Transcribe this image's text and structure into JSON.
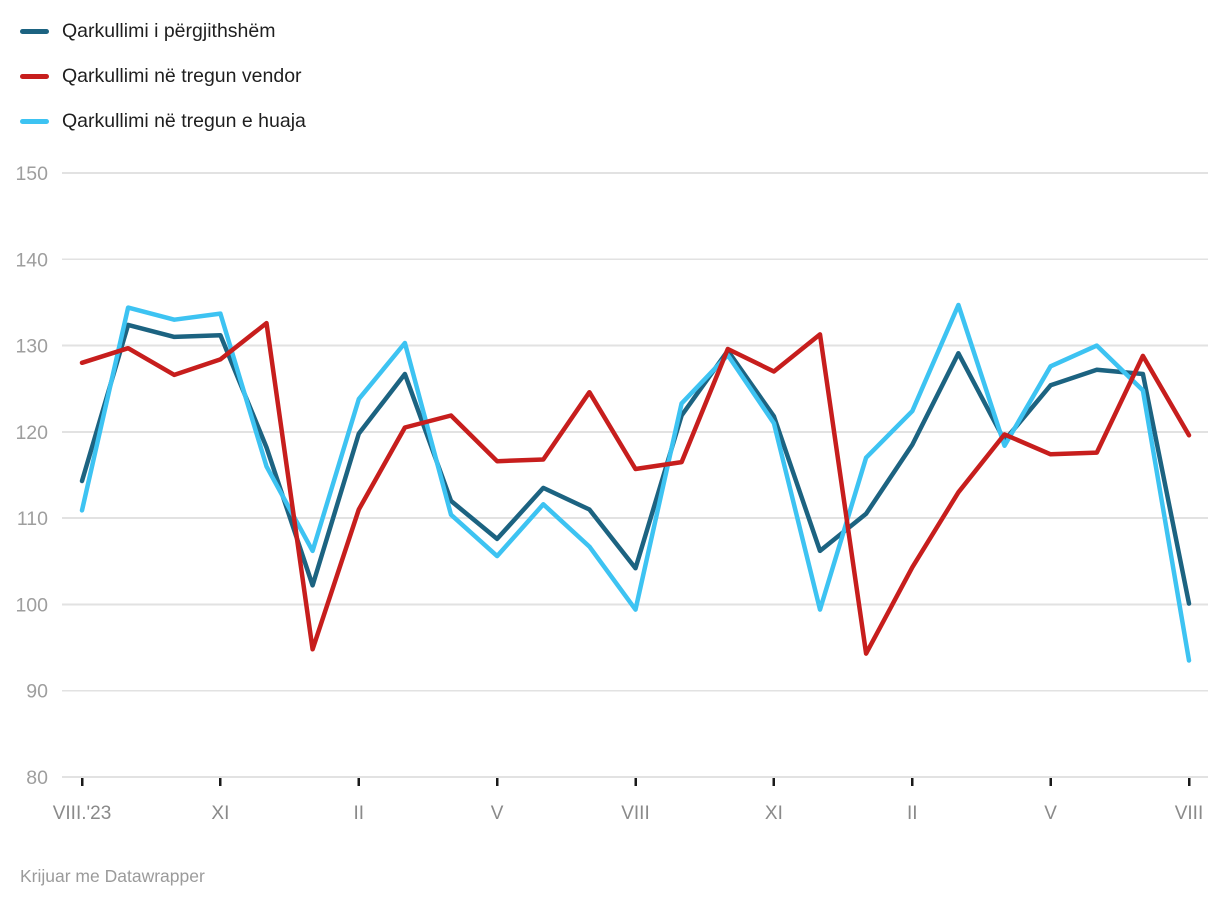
{
  "footer": {
    "attribution": "Krijuar me Datawrapper"
  },
  "chart_data": {
    "type": "line",
    "categories": [
      "VIII.2023",
      "IX.2023",
      "X.2023",
      "XI.2023",
      "XII.2023",
      "I.2024",
      "II.2024",
      "III.2024",
      "IV.2024",
      "V.2024",
      "VI.2024",
      "VII.2024",
      "VIII.2024",
      "IX.2024",
      "X.2024",
      "XI.2024",
      "XII.2024",
      "I.2025",
      "II.2025",
      "III.2025",
      "IV.2025",
      "V.2025",
      "VI.2025",
      "VII.2025",
      "VIII.2025"
    ],
    "series": [
      {
        "name": "Qarkullimi i përgjithshëm",
        "color": "#1c6381",
        "values": [
          114.3,
          132.4,
          131.0,
          131.2,
          118.2,
          102.2,
          119.8,
          126.7,
          112.0,
          107.6,
          113.5,
          111.0,
          104.2,
          121.9,
          129.4,
          121.8,
          106.2,
          110.5,
          118.5,
          129.1,
          119.0,
          125.4,
          127.2,
          126.7,
          100.1
        ]
      },
      {
        "name": "Qarkullimi në tregun vendor",
        "color": "#c71e1d",
        "values": [
          128.0,
          129.7,
          126.6,
          128.4,
          132.6,
          94.8,
          111.0,
          120.5,
          121.9,
          116.6,
          116.8,
          124.6,
          115.7,
          116.5,
          129.6,
          127.0,
          131.3,
          94.3,
          104.3,
          113.0,
          119.7,
          117.4,
          117.6,
          128.8,
          119.6
        ]
      },
      {
        "name": "Qarkullimi në tregun e huaja",
        "color": "#3dc3f2",
        "values": [
          110.9,
          134.4,
          133.0,
          133.7,
          116.0,
          106.2,
          123.8,
          130.3,
          110.4,
          105.6,
          111.6,
          106.7,
          99.4,
          123.3,
          128.9,
          121.0,
          99.4,
          117.0,
          122.4,
          134.7,
          118.4,
          127.6,
          130.0,
          124.8,
          93.5
        ]
      }
    ],
    "draw_order": [
      0,
      2,
      1
    ],
    "ylim": [
      80,
      150
    ],
    "yticks": [
      80,
      90,
      100,
      110,
      120,
      130,
      140,
      150
    ],
    "xticks": [
      {
        "index": 0,
        "label": "VIII.'23"
      },
      {
        "index": 3,
        "label": "XI"
      },
      {
        "index": 6,
        "label": "II"
      },
      {
        "index": 9,
        "label": "V"
      },
      {
        "index": 12,
        "label": "VIII"
      },
      {
        "index": 15,
        "label": "XI"
      },
      {
        "index": 18,
        "label": "II"
      },
      {
        "index": 21,
        "label": "V"
      },
      {
        "index": 24,
        "label": "VIII"
      }
    ],
    "grid": true,
    "legend_position": "top-left"
  }
}
